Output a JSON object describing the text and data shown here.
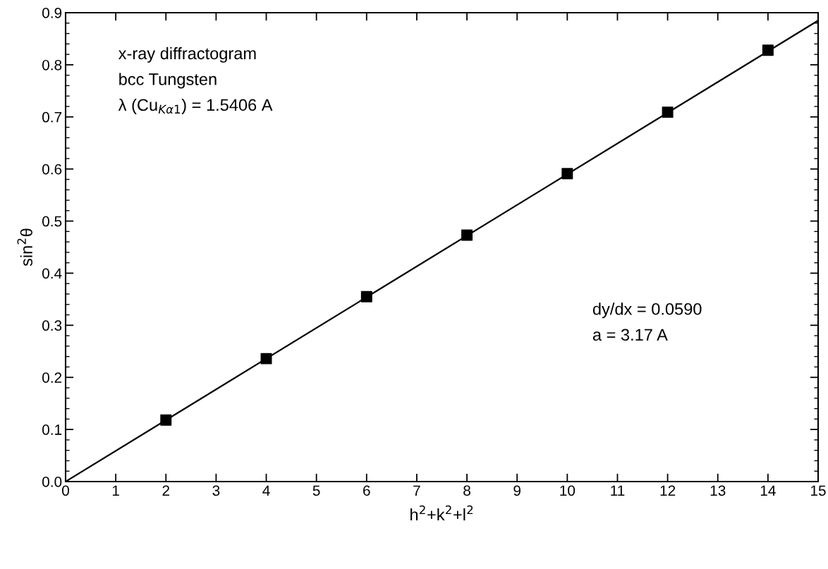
{
  "chart_data": {
    "type": "scatter",
    "xlabel": "h$^{2}$+k$^{2}$+l$^{2}$",
    "ylabel": "sin$^{2}$θ",
    "x": [
      2,
      4,
      6,
      8,
      10,
      12,
      14
    ],
    "series": [
      {
        "color": "#000000",
        "marker": "square",
        "values": [
          0.118,
          0.236,
          0.355,
          0.473,
          0.591,
          0.709,
          0.828
        ]
      },
      {
        "type": "line",
        "color": "#000000",
        "marker": "none",
        "line_style": "solid",
        "x": [
          0,
          15
        ],
        "values": [
          0,
          0.885
        ]
      }
    ],
    "xlim": [
      0,
      15
    ],
    "ylim": [
      0,
      0.9
    ],
    "xticks": [
      0,
      1,
      2,
      3,
      4,
      5,
      6,
      7,
      8,
      9,
      10,
      11,
      12,
      13,
      14,
      15
    ],
    "yticks": [
      {
        "value": 0,
        "label": "0.0"
      },
      0.1,
      0.2,
      0.3,
      0.4,
      0.5,
      0.6,
      0.7,
      0.8,
      0.9
    ],
    "grid": false,
    "legend": false,
    "annotations": [
      "x-ray diffractogram",
      "bcc Tungsten",
      "λ (Cu$_{Kα1}$) = 1.5406 A",
      "dy/dx = 0.0590",
      "a = 3.17 A"
    ]
  }
}
